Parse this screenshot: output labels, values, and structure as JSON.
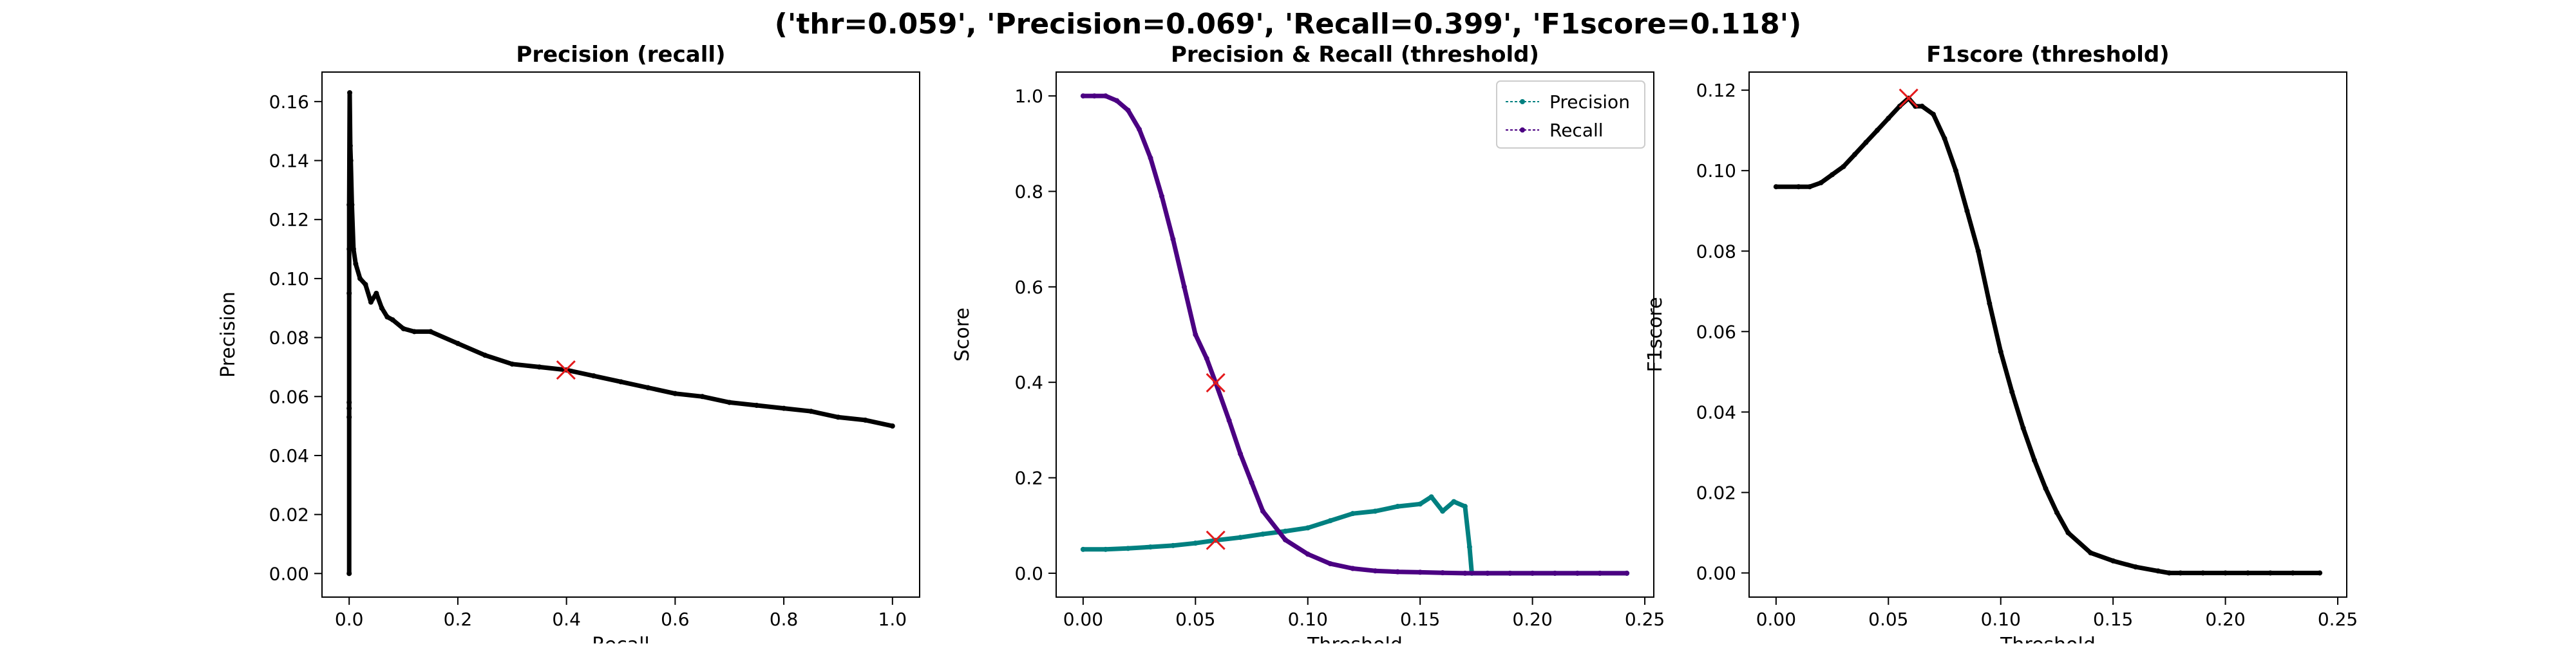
{
  "figure": {
    "suptitle": "('thr=0.059', 'Precision=0.069', 'Recall=0.399', 'F1score=0.118')"
  },
  "chart_data": [
    {
      "type": "line",
      "title": "Precision (recall)",
      "xlabel": "Recall",
      "ylabel": "Precision",
      "xlim": [
        -0.05,
        1.05
      ],
      "ylim": [
        -0.008,
        0.17
      ],
      "xticks": [
        "0.0",
        "0.2",
        "0.4",
        "0.6",
        "0.8",
        "1.0"
      ],
      "yticks": [
        "0.00",
        "0.02",
        "0.04",
        "0.06",
        "0.08",
        "0.10",
        "0.12",
        "0.14",
        "0.16"
      ],
      "grid": false,
      "colors": {
        "line": "#000000",
        "marker": "#e41a1c"
      },
      "series": [
        {
          "x": [
            0.0,
            0.0,
            0.0,
            0.0,
            0.0,
            0.0,
            0.0,
            0.001,
            0.002,
            0.003,
            0.005,
            0.008,
            0.012,
            0.02,
            0.03,
            0.04,
            0.05,
            0.06,
            0.07,
            0.08,
            0.1,
            0.12,
            0.15,
            0.2,
            0.25,
            0.3,
            0.35,
            0.4,
            0.45,
            0.5,
            0.55,
            0.6,
            0.65,
            0.7,
            0.75,
            0.8,
            0.85,
            0.9,
            0.95,
            1.0
          ],
          "y": [
            0.0,
            0.053,
            0.056,
            0.058,
            0.095,
            0.11,
            0.125,
            0.163,
            0.145,
            0.14,
            0.125,
            0.11,
            0.105,
            0.1,
            0.098,
            0.092,
            0.095,
            0.09,
            0.087,
            0.086,
            0.083,
            0.082,
            0.082,
            0.078,
            0.074,
            0.071,
            0.07,
            0.069,
            0.067,
            0.065,
            0.063,
            0.061,
            0.06,
            0.058,
            0.057,
            0.056,
            0.055,
            0.053,
            0.052,
            0.05
          ]
        }
      ],
      "marker": {
        "x": 0.399,
        "y": 0.069
      }
    },
    {
      "type": "line",
      "title": "Precision & Recall (threshold)",
      "xlabel": "Threshold",
      "ylabel": "Score",
      "xlim": [
        -0.012,
        0.254
      ],
      "ylim": [
        -0.05,
        1.05
      ],
      "xticks": [
        "0.00",
        "0.05",
        "0.10",
        "0.15",
        "0.20",
        "0.25"
      ],
      "yticks": [
        "0.0",
        "0.2",
        "0.4",
        "0.6",
        "0.8",
        "1.0"
      ],
      "grid": false,
      "legend": "top-right",
      "colors": {
        "precision": "#008080",
        "recall": "#4b0082",
        "marker": "#e41a1c"
      },
      "series": [
        {
          "name": "Precision",
          "x": [
            0.0,
            0.01,
            0.02,
            0.03,
            0.04,
            0.05,
            0.059,
            0.07,
            0.08,
            0.09,
            0.1,
            0.11,
            0.12,
            0.13,
            0.14,
            0.15,
            0.155,
            0.16,
            0.165,
            0.17,
            0.172,
            0.173,
            0.18,
            0.19,
            0.2,
            0.21,
            0.22,
            0.23,
            0.242
          ],
          "y": [
            0.05,
            0.05,
            0.052,
            0.055,
            0.058,
            0.063,
            0.069,
            0.075,
            0.082,
            0.088,
            0.095,
            0.11,
            0.125,
            0.13,
            0.14,
            0.145,
            0.16,
            0.13,
            0.15,
            0.14,
            0.055,
            0.0,
            0.0,
            0.0,
            0.0,
            0.0,
            0.0,
            0.0,
            0.0
          ]
        },
        {
          "name": "Recall",
          "x": [
            0.0,
            0.005,
            0.01,
            0.015,
            0.02,
            0.025,
            0.03,
            0.035,
            0.04,
            0.045,
            0.05,
            0.055,
            0.059,
            0.065,
            0.07,
            0.075,
            0.08,
            0.09,
            0.1,
            0.11,
            0.12,
            0.13,
            0.14,
            0.15,
            0.16,
            0.17,
            0.18,
            0.19,
            0.2,
            0.21,
            0.22,
            0.23,
            0.242
          ],
          "y": [
            1.0,
            1.0,
            1.0,
            0.99,
            0.97,
            0.93,
            0.87,
            0.79,
            0.7,
            0.6,
            0.5,
            0.45,
            0.399,
            0.32,
            0.25,
            0.19,
            0.13,
            0.07,
            0.04,
            0.02,
            0.01,
            0.005,
            0.003,
            0.002,
            0.001,
            0.0,
            0.0,
            0.0,
            0.0,
            0.0,
            0.0,
            0.0,
            0.0
          ]
        }
      ],
      "markers": [
        {
          "x": 0.059,
          "y": 0.399
        },
        {
          "x": 0.059,
          "y": 0.069
        }
      ]
    },
    {
      "type": "line",
      "title": "F1score (threshold)",
      "xlabel": "Threshold",
      "ylabel": "F1score",
      "xlim": [
        -0.012,
        0.254
      ],
      "ylim": [
        -0.006,
        0.1245
      ],
      "xticks": [
        "0.00",
        "0.05",
        "0.10",
        "0.15",
        "0.20",
        "0.25"
      ],
      "yticks": [
        "0.00",
        "0.02",
        "0.04",
        "0.06",
        "0.08",
        "0.10",
        "0.12"
      ],
      "grid": false,
      "colors": {
        "line": "#000000",
        "marker": "#e41a1c"
      },
      "series": [
        {
          "x": [
            0.0,
            0.01,
            0.015,
            0.02,
            0.025,
            0.03,
            0.035,
            0.04,
            0.045,
            0.05,
            0.055,
            0.059,
            0.062,
            0.065,
            0.07,
            0.075,
            0.08,
            0.085,
            0.09,
            0.095,
            0.1,
            0.105,
            0.11,
            0.115,
            0.12,
            0.125,
            0.13,
            0.14,
            0.15,
            0.16,
            0.17,
            0.175,
            0.18,
            0.19,
            0.2,
            0.21,
            0.22,
            0.23,
            0.242
          ],
          "y": [
            0.096,
            0.096,
            0.096,
            0.097,
            0.099,
            0.101,
            0.104,
            0.107,
            0.11,
            0.113,
            0.116,
            0.118,
            0.116,
            0.116,
            0.114,
            0.108,
            0.1,
            0.09,
            0.08,
            0.067,
            0.055,
            0.045,
            0.036,
            0.028,
            0.021,
            0.015,
            0.01,
            0.005,
            0.003,
            0.0015,
            0.0005,
            0.0,
            0.0,
            0.0,
            0.0,
            0.0,
            0.0,
            0.0,
            0.0
          ]
        }
      ],
      "marker": {
        "x": 0.059,
        "y": 0.118
      }
    }
  ]
}
